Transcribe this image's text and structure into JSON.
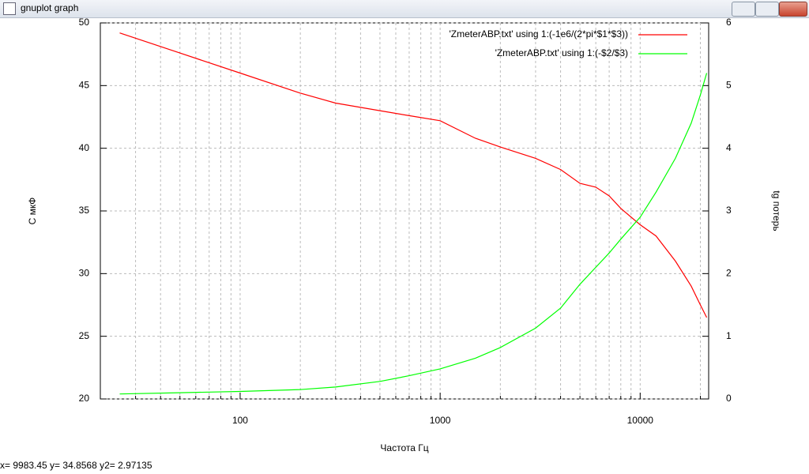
{
  "window_title": "gnuplot graph",
  "status_text": "x= 9983.45 y= 34.8568 y2= 2.97135",
  "chart_data": {
    "type": "line",
    "xlabel": "Частота Гц",
    "ylabel": "С мкФ",
    "y2label": "tg потерь",
    "xlog": true,
    "grid": true,
    "legend": "top right",
    "xlim": [
      20,
      22000
    ],
    "xticks": [
      100,
      1000,
      10000
    ],
    "xminorticks": [
      30,
      40,
      50,
      60,
      70,
      80,
      90,
      200,
      300,
      400,
      500,
      600,
      700,
      800,
      900,
      2000,
      3000,
      4000,
      5000,
      6000,
      7000,
      8000,
      9000,
      20000
    ],
    "ylim": [
      20,
      50
    ],
    "yticks": [
      20,
      25,
      30,
      35,
      40,
      45,
      50
    ],
    "y2lim": [
      0,
      6
    ],
    "y2ticks": [
      0,
      1,
      2,
      3,
      4,
      5,
      6
    ],
    "x": [
      25,
      50,
      100,
      200,
      300,
      500,
      700,
      1000,
      1500,
      2000,
      3000,
      4000,
      5000,
      6000,
      7000,
      8000,
      10000,
      12000,
      15000,
      18000,
      20000,
      21500
    ],
    "series": [
      {
        "name": "'ZmeterABP.txt' using 1:(-1e6/(2*pi*$1*$3))",
        "color": "#ff0000",
        "values": [
          49.2,
          47.6,
          46.0,
          44.4,
          43.6,
          43.0,
          42.6,
          42.2,
          40.8,
          40.1,
          39.2,
          38.3,
          37.2,
          36.9,
          36.2,
          35.2,
          33.9,
          33.0,
          31.0,
          29.0,
          27.5,
          26.5
        ]
      },
      {
        "name": "'ZmeterABP.txt' using 1:(-$2/$3)",
        "color": "#00ff00",
        "axis": "y2",
        "values": [
          0.08,
          0.1,
          0.12,
          0.15,
          0.19,
          0.28,
          0.37,
          0.48,
          0.65,
          0.82,
          1.13,
          1.45,
          1.83,
          2.1,
          2.33,
          2.55,
          2.9,
          3.3,
          3.84,
          4.4,
          4.85,
          5.2
        ]
      }
    ]
  }
}
